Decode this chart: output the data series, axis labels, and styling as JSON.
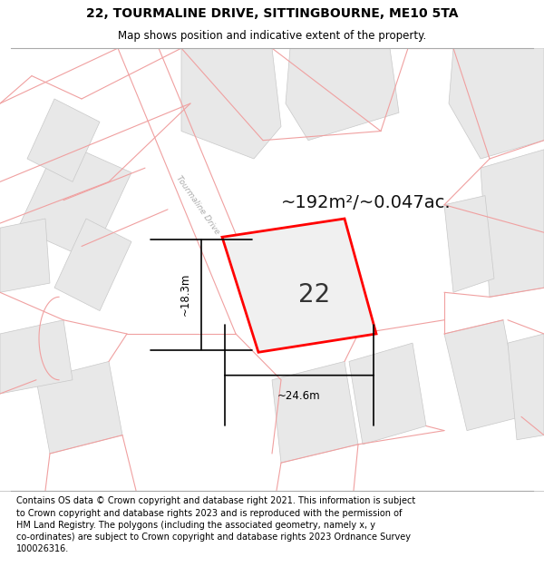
{
  "title": "22, TOURMALINE DRIVE, SITTINGBOURNE, ME10 5TA",
  "subtitle": "Map shows position and indicative extent of the property.",
  "footer": "Contains OS data © Crown copyright and database right 2021. This information is subject\nto Crown copyright and database rights 2023 and is reproduced with the permission of\nHM Land Registry. The polygons (including the associated geometry, namely x, y\nco-ordinates) are subject to Crown copyright and database rights 2023 Ordnance Survey\n100026316.",
  "area_label": "~192m²/~0.047ac.",
  "number_label": "22",
  "dim_width": "~24.6m",
  "dim_height": "~18.3m",
  "street_label": "Tourmaline Drive",
  "map_bg": "#f7f7f7",
  "plot_border_color": "#ff0000",
  "gray_fill": "#e8e8e8",
  "gray_edge": "#c8c8c8",
  "pink_color": "#f0a0a0",
  "title_fontsize": 10,
  "subtitle_fontsize": 8.5,
  "footer_fontsize": 7.0,
  "area_fontsize": 14,
  "number_fontsize": 20
}
